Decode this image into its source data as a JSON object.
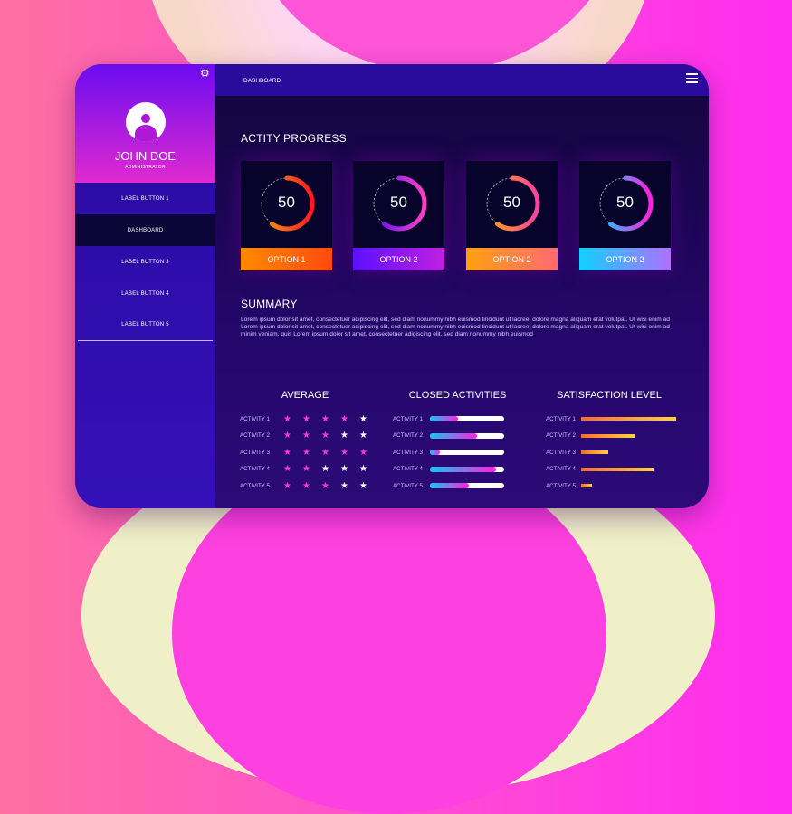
{
  "user": {
    "name": "JOHN DOE",
    "role": "ADMINISTRATOR"
  },
  "sidebar": {
    "items": [
      {
        "label": "LABEL BUTTON 1"
      },
      {
        "label": "DASHBOARD",
        "active": true
      },
      {
        "label": "LABEL BUTTON 3"
      },
      {
        "label": "LABEL BUTTON 4"
      },
      {
        "label": "LABEL BUTTON 5"
      }
    ]
  },
  "header": {
    "title": "DASHBOARD"
  },
  "progress": {
    "title": "ACTITY PROGRESS",
    "cards": [
      {
        "value": "50",
        "label": "OPTION 1",
        "colors": [
          "#ff9a10",
          "#ff1a20"
        ],
        "label_colors": [
          "#ff8a00",
          "#ff4a10"
        ]
      },
      {
        "value": "50",
        "label": "OPTION 2",
        "colors": [
          "#5a10ff",
          "#ff40c0"
        ],
        "label_colors": [
          "#5a10ff",
          "#c020e0"
        ]
      },
      {
        "value": "50",
        "label": "OPTION 2",
        "colors": [
          "#ffa810",
          "#ff40a0"
        ],
        "label_colors": [
          "#ffa010",
          "#ff6a70"
        ]
      },
      {
        "value": "50",
        "label": "OPTION 2",
        "colors": [
          "#10d0ff",
          "#ff20e0"
        ],
        "label_colors": [
          "#10d0ff",
          "#b070ff"
        ]
      }
    ]
  },
  "summary": {
    "title": "SUMMARY",
    "text": "Lorem ipsum dolor sit amet, consectetuer adipiscing elit, sed diam nonummy nibh euismod tincidunt ut laoreet dolore magna aliquam erat volutpat. Ut wisi enim ad Lorem ipsum dolor sit amet, consectetuer adipiscing elit, sed diam nonummy nibh euismod tincidunt ut laoreet dolore magna aliquam erat volutpat. Ut wisi enim ad minim veniam, quis Lorem ipsum dolor sit amet, consectetuer adipiscing elit, sed diam nonummy nibh euismod"
  },
  "average": {
    "title": "AVERAGE",
    "max": 5,
    "rows": [
      {
        "label": "ACTIVITY 1",
        "stars": 4
      },
      {
        "label": "ACTIVITY 2",
        "stars": 3
      },
      {
        "label": "ACTIVITY 3",
        "stars": 5
      },
      {
        "label": "ACTIVITY 4",
        "stars": 2
      },
      {
        "label": "ACTIVITY 5",
        "stars": 3
      }
    ]
  },
  "closed": {
    "title": "CLOSED ACTIVITIES",
    "rows": [
      {
        "label": "ACTIVITY 1",
        "progress": 0.38
      },
      {
        "label": "ACTIVITY 2",
        "progress": 0.64
      },
      {
        "label": "ACTIVITY 3",
        "progress": 0.14
      },
      {
        "label": "ACTIVITY 4",
        "progress": 0.89
      },
      {
        "label": "ACTIVITY 5",
        "progress": 0.52
      }
    ]
  },
  "satisfaction": {
    "title": "SATISFACTION LEVEL",
    "rows": [
      {
        "label": "ACTIVITY 1",
        "level": 1.0
      },
      {
        "label": "ACTIVITY 2",
        "level": 0.56
      },
      {
        "label": "ACTIVITY 3",
        "level": 0.29
      },
      {
        "label": "ACTIVITY 4",
        "level": 0.76
      },
      {
        "label": "ACTIVITY 5",
        "level": 0.11
      }
    ]
  }
}
